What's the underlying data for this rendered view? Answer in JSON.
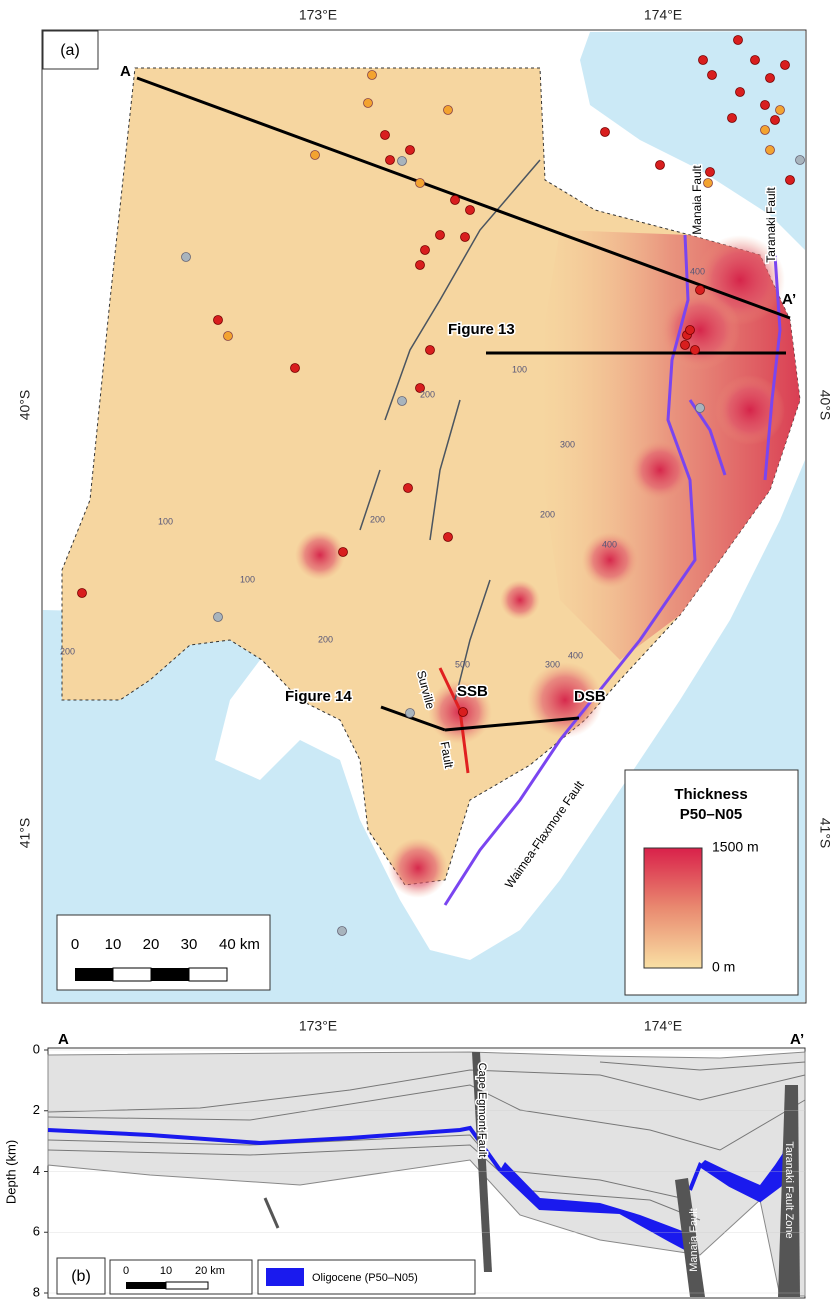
{
  "panel_a": {
    "label": "(a)",
    "lon_labels": [
      "173°E",
      "174°E"
    ],
    "lat_labels": [
      "40°S",
      "41°S"
    ],
    "section_line": {
      "start": "A",
      "end": "A’"
    },
    "figure_refs": [
      "Figure 13",
      "Figure 14"
    ],
    "basins": [
      "SSB",
      "DSB"
    ],
    "faults": [
      "Manaia Fault",
      "Taranaki Fault",
      "Surville",
      "Fault",
      "Waimea-Flaxmore Fault"
    ],
    "contour_labels": [
      100,
      100,
      100,
      200,
      200,
      200,
      200,
      300,
      300,
      400,
      400,
      400,
      500,
      200
    ],
    "legend": {
      "title_1": "Thickness",
      "title_2": "P50–N05",
      "max": "1500 m",
      "min": "0 m"
    },
    "scale_bar": [
      "0",
      "10",
      "20",
      "30",
      "40 km"
    ]
  },
  "panel_b": {
    "label": "(b)",
    "section_line": {
      "start": "A",
      "end": "A’"
    },
    "y_label": "Depth (km)",
    "depth_lim": [
      0,
      8
    ],
    "depth_ticks": [
      0,
      2,
      4,
      6,
      8
    ],
    "faults": [
      "Cape Egmont Fault",
      "Manaia Fault",
      "Taranaki Fault Zone"
    ],
    "scale_bar": [
      "0",
      "10",
      "20 km"
    ],
    "legend": "Oligocene (P50–N05)"
  }
}
